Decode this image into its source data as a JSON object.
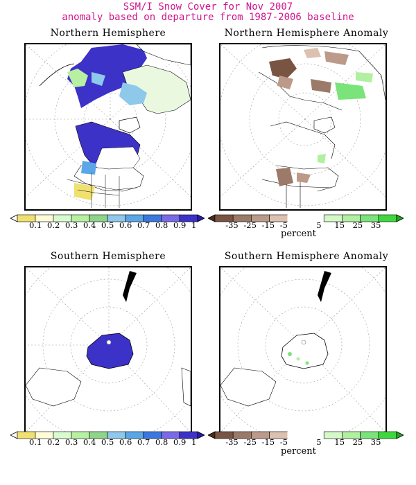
{
  "header": {
    "title": "SSM/I Snow Cover for Nov 2007",
    "subtitle": "anomaly based on departure from 1987-2006 baseline"
  },
  "panels": {
    "nh": {
      "title": "Northern Hemisphere"
    },
    "nh_anom": {
      "title": "Northern Hemisphere Anomaly"
    },
    "sh": {
      "title": "Southern Hemisphere"
    },
    "sh_anom": {
      "title": "Southern Hemisphere Anomaly"
    }
  },
  "colorbars": {
    "fraction": {
      "colors": [
        "#ffffff",
        "#f0e070",
        "#fffcd8",
        "#d8fcd0",
        "#b6f0a0",
        "#8ed48a",
        "#8ec8ea",
        "#5aa6e6",
        "#3a78e0",
        "#7a6ae8",
        "#3c32c8",
        "#2a1aa8"
      ],
      "labels": [
        "0.1",
        "0.2",
        "0.3",
        "0.4",
        "0.5",
        "0.6",
        "0.7",
        "0.8",
        "0.9",
        "1"
      ]
    },
    "anomaly": {
      "colors": [
        "#4a2a1a",
        "#7a5442",
        "#9c7a6a",
        "#bc9a8a",
        "#dcc0b0",
        "#ffffff",
        "#ffffff",
        "#d4f8c8",
        "#b0f0a0",
        "#7ae47a",
        "#3ed83e",
        "#1eaa1e"
      ],
      "labels": [
        "-35",
        "-25",
        "-15",
        "-5",
        "5",
        "15",
        "25",
        "35"
      ],
      "unit": "percent"
    }
  },
  "colors": {
    "title": "#d0148c",
    "snow_full": "#3c32c8",
    "snow_partial": "#5aa6e6",
    "anom_negative": "#bc9a8a",
    "anom_positive": "#7ae47a"
  }
}
